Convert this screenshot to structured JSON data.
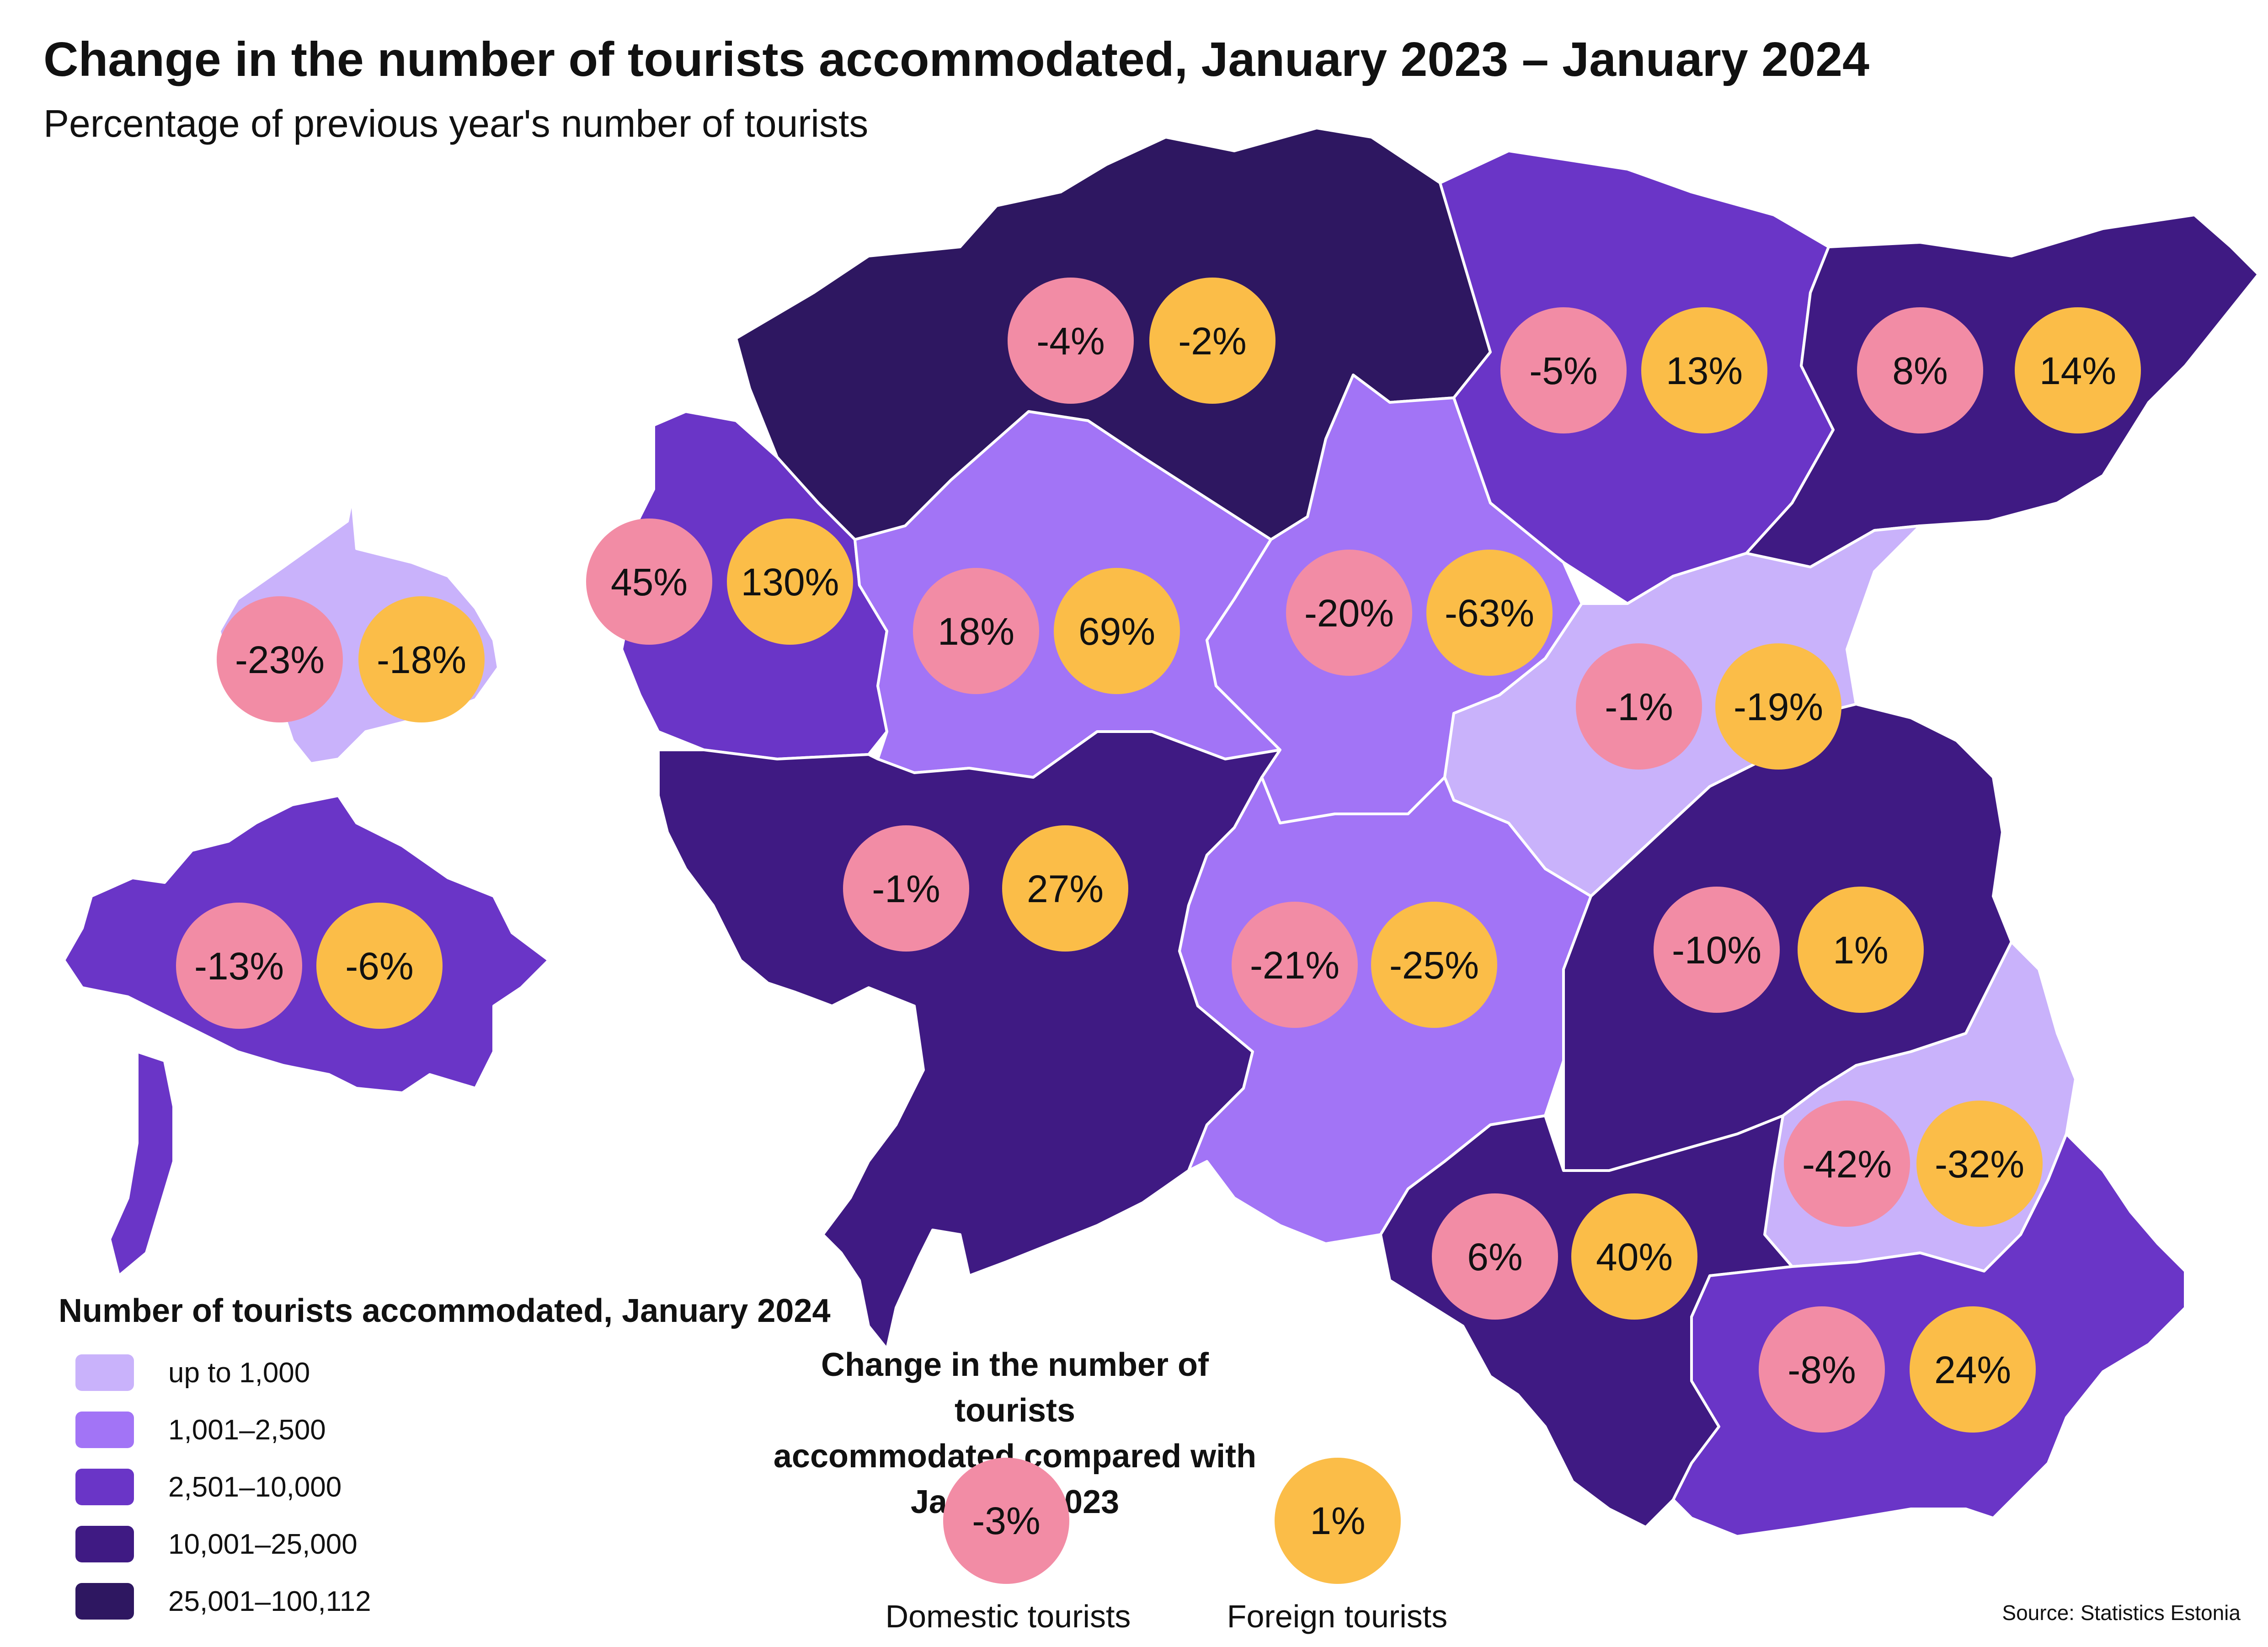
{
  "title": "Change in the number of tourists accommodated, January 2023 – January 2024",
  "subtitle": "Percentage of previous year's number of tourists",
  "colors": {
    "class1": "#C9B2FB",
    "class2": "#A274F6",
    "class3": "#6A35C7",
    "class4": "#3F1A83",
    "class5": "#2E1761",
    "domestic": "#F28CA5",
    "foreign": "#FBBD48",
    "border": "#ffffff"
  },
  "legend": {
    "title": "Number of tourists accommodated, January 2024",
    "items": [
      {
        "label": "up to 1,000",
        "color": "#C9B2FB"
      },
      {
        "label": "1,001–2,500",
        "color": "#A274F6"
      },
      {
        "label": "2,501–10,000",
        "color": "#6A35C7"
      },
      {
        "label": "10,001–25,000",
        "color": "#3F1A83"
      },
      {
        "label": "25,001–100,112",
        "color": "#2E1761"
      }
    ]
  },
  "change_legend": {
    "title_line1": "Change in the number of tourists",
    "title_line2": "accommodated compared with January 2023",
    "domestic_value": "-3%",
    "foreign_value": "1%",
    "domestic_label": "Domestic tourists",
    "foreign_label": "Foreign tourists"
  },
  "regions": [
    {
      "id": "harju",
      "class": 5,
      "domestic": "-4%",
      "foreign": "-2%"
    },
    {
      "id": "laane-viru",
      "class": 3,
      "domestic": "-5%",
      "foreign": "13%"
    },
    {
      "id": "ida-viru",
      "class": 4,
      "domestic": "8%",
      "foreign": "14%"
    },
    {
      "id": "hiiu",
      "class": 1,
      "domestic": "-23%",
      "foreign": "-18%"
    },
    {
      "id": "laane",
      "class": 3,
      "domestic": "45%",
      "foreign": "130%"
    },
    {
      "id": "rapla",
      "class": 2,
      "domestic": "18%",
      "foreign": "69%"
    },
    {
      "id": "jarva",
      "class": 2,
      "domestic": "-20%",
      "foreign": "-63%"
    },
    {
      "id": "jogeva",
      "class": 1,
      "domestic": "-1%",
      "foreign": "-19%"
    },
    {
      "id": "saare",
      "class": 3,
      "domestic": "-13%",
      "foreign": "-6%"
    },
    {
      "id": "parnu",
      "class": 4,
      "domestic": "-1%",
      "foreign": "27%"
    },
    {
      "id": "viljandi",
      "class": 2,
      "domestic": "-21%",
      "foreign": "-25%"
    },
    {
      "id": "tartu",
      "class": 4,
      "domestic": "-10%",
      "foreign": "1%"
    },
    {
      "id": "polva",
      "class": 1,
      "domestic": "-42%",
      "foreign": "-32%"
    },
    {
      "id": "valga",
      "class": 4,
      "domestic": "6%",
      "foreign": "40%"
    },
    {
      "id": "voru",
      "class": 3,
      "domestic": "-8%",
      "foreign": "24%"
    }
  ],
  "source": "Source: Statistics Estonia"
}
